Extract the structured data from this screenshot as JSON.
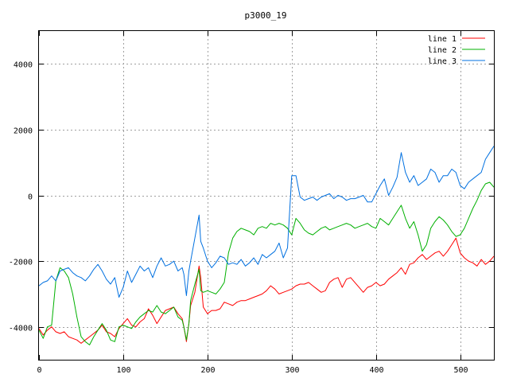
{
  "chart_data": {
    "type": "line",
    "title": "p3000_19",
    "xlabel": "",
    "ylabel": "",
    "xlim": [
      0,
      540
    ],
    "ylim": [
      -5000,
      5000
    ],
    "xticks": [
      0,
      100,
      200,
      300,
      400,
      500
    ],
    "yticks": [
      -4000,
      -2000,
      0,
      2000,
      4000
    ],
    "grid": true,
    "legend_position": "top-right",
    "series": [
      {
        "name": "line 1",
        "color": "#ff0000",
        "x": [
          0,
          5,
          10,
          15,
          20,
          25,
          30,
          35,
          40,
          45,
          50,
          55,
          60,
          65,
          70,
          75,
          80,
          85,
          90,
          95,
          100,
          105,
          110,
          115,
          120,
          125,
          130,
          135,
          140,
          145,
          150,
          155,
          160,
          165,
          170,
          172,
          175,
          178,
          180,
          185,
          190,
          192,
          195,
          200,
          205,
          210,
          215,
          220,
          225,
          230,
          235,
          240,
          245,
          250,
          255,
          260,
          265,
          270,
          275,
          280,
          285,
          290,
          295,
          300,
          305,
          310,
          315,
          320,
          325,
          330,
          335,
          340,
          345,
          350,
          355,
          360,
          365,
          370,
          375,
          380,
          385,
          390,
          395,
          400,
          405,
          410,
          415,
          420,
          425,
          430,
          435,
          440,
          445,
          450,
          455,
          460,
          465,
          470,
          475,
          480,
          485,
          490,
          495,
          500,
          505,
          510,
          515,
          520,
          525,
          530,
          535,
          540
        ],
        "y": [
          -4050,
          -4250,
          -4100,
          -4000,
          -4150,
          -4200,
          -4150,
          -4300,
          -4350,
          -4400,
          -4500,
          -4400,
          -4300,
          -4200,
          -4100,
          -3950,
          -4150,
          -4200,
          -4300,
          -4050,
          -3900,
          -3750,
          -3950,
          -4000,
          -3850,
          -3750,
          -3450,
          -3650,
          -3900,
          -3700,
          -3500,
          -3450,
          -3400,
          -3600,
          -3750,
          -4000,
          -4450,
          -3900,
          -3350,
          -2950,
          -2150,
          -2500,
          -3400,
          -3600,
          -3500,
          -3500,
          -3450,
          -3250,
          -3300,
          -3350,
          -3250,
          -3200,
          -3200,
          -3150,
          -3100,
          -3050,
          -3000,
          -2900,
          -2750,
          -2850,
          -3000,
          -2950,
          -2900,
          -2850,
          -2750,
          -2700,
          -2700,
          -2650,
          -2750,
          -2850,
          -2950,
          -2900,
          -2650,
          -2550,
          -2500,
          -2800,
          -2550,
          -2500,
          -2650,
          -2800,
          -2950,
          -2800,
          -2750,
          -2650,
          -2750,
          -2700,
          -2550,
          -2450,
          -2350,
          -2200,
          -2400,
          -2100,
          -2050,
          -1900,
          -1800,
          -1950,
          -1850,
          -1750,
          -1700,
          -1850,
          -1700,
          -1500,
          -1300,
          -1750,
          -1900,
          -2000,
          -2050,
          -2150,
          -1950,
          -2100,
          -2000,
          -1850
        ]
      },
      {
        "name": "line 2",
        "color": "#00b000",
        "x": [
          0,
          5,
          10,
          15,
          20,
          25,
          30,
          35,
          40,
          45,
          50,
          55,
          60,
          65,
          70,
          75,
          80,
          85,
          90,
          95,
          100,
          105,
          110,
          115,
          120,
          125,
          130,
          135,
          140,
          145,
          150,
          155,
          160,
          165,
          170,
          172,
          175,
          178,
          180,
          185,
          190,
          192,
          195,
          200,
          205,
          210,
          215,
          220,
          225,
          230,
          235,
          240,
          245,
          250,
          255,
          260,
          265,
          270,
          275,
          280,
          285,
          290,
          295,
          300,
          305,
          310,
          315,
          320,
          325,
          330,
          335,
          340,
          345,
          350,
          355,
          360,
          365,
          370,
          375,
          380,
          385,
          390,
          395,
          400,
          405,
          410,
          415,
          420,
          425,
          430,
          435,
          440,
          445,
          450,
          455,
          460,
          465,
          470,
          475,
          480,
          485,
          490,
          495,
          500,
          505,
          510,
          515,
          520,
          525,
          530,
          535,
          540
        ],
        "y": [
          -4100,
          -4350,
          -4000,
          -3950,
          -2600,
          -2200,
          -2300,
          -2500,
          -3000,
          -3700,
          -4300,
          -4450,
          -4550,
          -4300,
          -4100,
          -3900,
          -4100,
          -4400,
          -4450,
          -4000,
          -3950,
          -4000,
          -4050,
          -3850,
          -3700,
          -3600,
          -3500,
          -3550,
          -3350,
          -3550,
          -3600,
          -3500,
          -3400,
          -3700,
          -3800,
          -4000,
          -4400,
          -3900,
          -3200,
          -2700,
          -2250,
          -2900,
          -2950,
          -2900,
          -2950,
          -3000,
          -2850,
          -2650,
          -1750,
          -1300,
          -1100,
          -1000,
          -1050,
          -1100,
          -1200,
          -1000,
          -950,
          -1000,
          -850,
          -900,
          -850,
          -900,
          -1000,
          -1200,
          -700,
          -850,
          -1050,
          -1150,
          -1200,
          -1100,
          -1000,
          -950,
          -1050,
          -1000,
          -950,
          -900,
          -850,
          -900,
          -1000,
          -950,
          -900,
          -850,
          -950,
          -1000,
          -700,
          -800,
          -900,
          -700,
          -500,
          -300,
          -700,
          -1000,
          -800,
          -1200,
          -1700,
          -1500,
          -1000,
          -800,
          -650,
          -750,
          -900,
          -1100,
          -1250,
          -1200,
          -1000,
          -700,
          -400,
          -150,
          150,
          350,
          400,
          250
        ]
      },
      {
        "name": "line 3",
        "color": "#0070e0",
        "x": [
          0,
          5,
          10,
          15,
          20,
          25,
          30,
          35,
          40,
          45,
          50,
          55,
          60,
          65,
          70,
          75,
          80,
          85,
          90,
          95,
          100,
          105,
          110,
          115,
          120,
          125,
          130,
          135,
          140,
          145,
          150,
          155,
          160,
          165,
          170,
          172,
          175,
          178,
          180,
          185,
          190,
          192,
          195,
          200,
          205,
          210,
          215,
          220,
          225,
          230,
          235,
          240,
          245,
          250,
          255,
          260,
          265,
          270,
          275,
          280,
          285,
          290,
          295,
          300,
          305,
          310,
          315,
          320,
          325,
          330,
          335,
          340,
          345,
          350,
          355,
          360,
          365,
          370,
          375,
          380,
          385,
          390,
          395,
          400,
          405,
          410,
          415,
          420,
          425,
          430,
          435,
          440,
          445,
          450,
          455,
          460,
          465,
          470,
          475,
          480,
          485,
          490,
          495,
          500,
          505,
          510,
          515,
          520,
          525,
          530,
          535,
          540
        ],
        "y": [
          -2750,
          -2650,
          -2600,
          -2450,
          -2600,
          -2300,
          -2250,
          -2200,
          -2350,
          -2450,
          -2500,
          -2600,
          -2450,
          -2250,
          -2100,
          -2300,
          -2550,
          -2700,
          -2500,
          -3100,
          -2800,
          -2300,
          -2650,
          -2400,
          -2150,
          -2300,
          -2200,
          -2500,
          -2150,
          -1900,
          -2150,
          -2100,
          -2000,
          -2300,
          -2200,
          -2400,
          -3050,
          -2300,
          -2000,
          -1300,
          -600,
          -1400,
          -1600,
          -2000,
          -2200,
          -2050,
          -1850,
          -1900,
          -2100,
          -2050,
          -2100,
          -1950,
          -2150,
          -2050,
          -1900,
          -2100,
          -1800,
          -1900,
          -1800,
          -1700,
          -1450,
          -1900,
          -1600,
          600,
          600,
          -50,
          -150,
          -100,
          -50,
          -150,
          -50,
          0,
          50,
          -100,
          0,
          -50,
          -150,
          -100,
          -100,
          -50,
          0,
          -200,
          -200,
          50,
          300,
          500,
          0,
          250,
          550,
          1300,
          700,
          400,
          600,
          300,
          400,
          500,
          800,
          700,
          400,
          600,
          600,
          800,
          700,
          300,
          200,
          400,
          500,
          600,
          700,
          1100,
          1300,
          1500
        ]
      }
    ]
  }
}
